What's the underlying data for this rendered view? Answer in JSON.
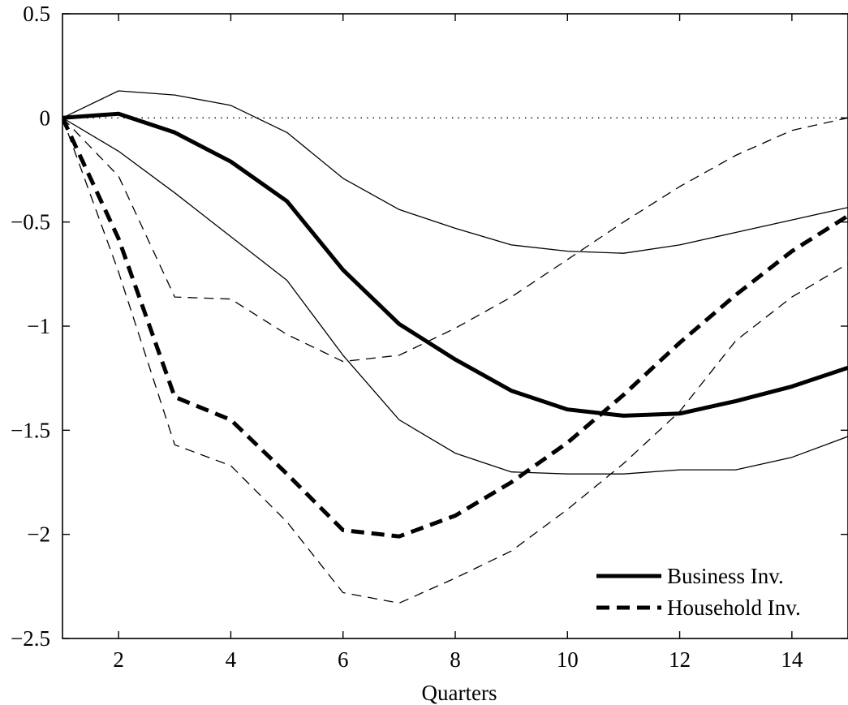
{
  "chart_data": {
    "type": "line",
    "title": "",
    "xlabel": "Quarters",
    "ylabel": "",
    "xlim": [
      1,
      15
    ],
    "ylim": [
      -2.5,
      0.5
    ],
    "xticks": [
      2,
      4,
      6,
      8,
      10,
      12,
      14
    ],
    "yticks": [
      0.5,
      0,
      -0.5,
      -1,
      -1.5,
      -2,
      -2.5
    ],
    "ytick_labels": [
      "0.5",
      "0",
      "−0.5",
      "−1",
      "−1.5",
      "−2",
      "−2.5"
    ],
    "grid": false,
    "legend_position": "bottom-right",
    "legend": [
      {
        "label": "Business Inv.",
        "style": "solid"
      },
      {
        "label": "Household Inv.",
        "style": "dashed"
      }
    ],
    "zero_line": {
      "y": 0,
      "style": "dotted"
    },
    "x": [
      1,
      2,
      3,
      4,
      5,
      6,
      7,
      8,
      9,
      10,
      11,
      12,
      13,
      14,
      15
    ],
    "series": [
      {
        "name": "Business Inv.",
        "role": "median",
        "style": "solid",
        "width": "thick",
        "values": [
          0,
          0.02,
          -0.07,
          -0.21,
          -0.4,
          -0.73,
          -0.99,
          -1.16,
          -1.31,
          -1.4,
          -1.43,
          -1.42,
          -1.36,
          -1.29,
          -1.2
        ]
      },
      {
        "role": "upper band",
        "style": "solid",
        "width": "thin",
        "values": [
          0,
          0.13,
          0.11,
          0.06,
          -0.07,
          -0.29,
          -0.44,
          -0.53,
          -0.61,
          -0.64,
          -0.65,
          -0.61,
          -0.55,
          -0.49,
          -0.43
        ]
      },
      {
        "role": "lower band",
        "style": "solid",
        "width": "thin",
        "values": [
          0,
          -0.16,
          -0.36,
          -0.57,
          -0.78,
          -1.14,
          -1.45,
          -1.61,
          -1.7,
          -1.71,
          -1.71,
          -1.69,
          -1.69,
          -1.63,
          -1.53
        ]
      },
      {
        "name": "Household Inv.",
        "role": "median",
        "style": "dashed",
        "width": "thick",
        "values": [
          0,
          -0.58,
          -1.34,
          -1.45,
          -1.71,
          -1.98,
          -2.01,
          -1.91,
          -1.75,
          -1.56,
          -1.33,
          -1.08,
          -0.85,
          -0.64,
          -0.47
        ]
      },
      {
        "role": "upper band",
        "style": "dashed",
        "width": "thin",
        "values": [
          0,
          -0.28,
          -0.86,
          -0.87,
          -1.04,
          -1.17,
          -1.14,
          -1.01,
          -0.86,
          -0.68,
          -0.5,
          -0.33,
          -0.18,
          -0.06,
          0.0
        ]
      },
      {
        "role": "lower band",
        "style": "dashed",
        "width": "thin",
        "values": [
          0,
          -0.74,
          -1.57,
          -1.67,
          -1.94,
          -2.28,
          -2.33,
          -2.21,
          -2.08,
          -1.88,
          -1.66,
          -1.41,
          -1.07,
          -0.86,
          -0.7
        ]
      }
    ]
  }
}
